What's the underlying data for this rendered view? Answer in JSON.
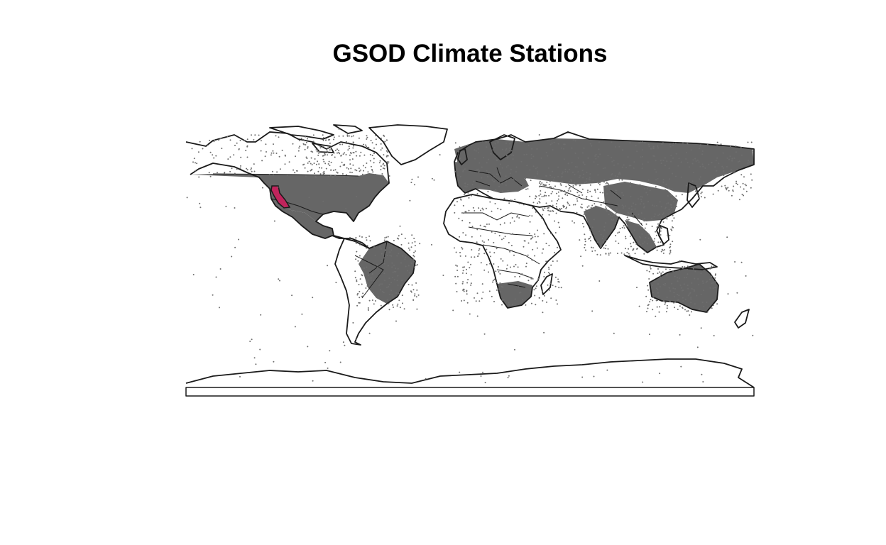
{
  "title": "GSOD Climate Stations",
  "colors": {
    "background": "#ffffff",
    "ocean": "#ffffff",
    "land_with_stations": "#666666",
    "land_plain": "#ffffff",
    "borders": "#1a1a1a",
    "station_points": "#6e6e6e",
    "highlight_region": "#c0245c"
  },
  "map": {
    "projection": "equirectangular",
    "lon_range": [
      -180,
      180
    ],
    "lat_range": [
      -90,
      90
    ],
    "highlighted_region": "California"
  }
}
